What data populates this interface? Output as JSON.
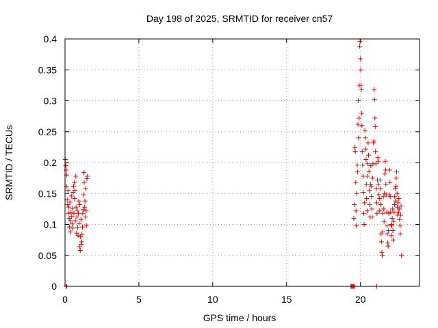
{
  "chart_data": {
    "type": "scatter",
    "title": "Day 198 of 2025, SRMTID for receiver cn57",
    "xlabel": "GPS time / hours",
    "ylabel": "SRMTID / TECUs",
    "xlim": [
      0,
      24
    ],
    "ylim": [
      0,
      0.4
    ],
    "x_ticks": [
      0,
      5,
      10,
      15,
      20
    ],
    "y_ticks": [
      0,
      0.05,
      0.1,
      0.15,
      0.2,
      0.25,
      0.3,
      0.35,
      0.4
    ],
    "x_tick_labels": [
      "0",
      "5",
      "10",
      "15",
      "20"
    ],
    "y_tick_labels": [
      "0",
      "0.05",
      "0.1",
      "0.15",
      "0.2",
      "0.25",
      "0.3",
      "0.35",
      "0.4"
    ],
    "grid": true,
    "legend": "none",
    "marker": "+",
    "marker_color": "#e00000",
    "series": [
      {
        "name": "SRMTID",
        "points": [
          [
            0.02,
            0.205
          ],
          [
            0.05,
            0.195
          ],
          [
            0.08,
            0.188
          ],
          [
            0.1,
            0.162
          ],
          [
            0.12,
            0.18
          ],
          [
            0.15,
            0.14
          ],
          [
            0.18,
            0.132
          ],
          [
            0.2,
            0.155
          ],
          [
            0.22,
            0.118
          ],
          [
            0.25,
            0.128
          ],
          [
            0.28,
            0.11
          ],
          [
            0.3,
            0.096
          ],
          [
            0.33,
            0.136
          ],
          [
            0.35,
            0.088
          ],
          [
            0.38,
            0.106
          ],
          [
            0.4,
            0.12
          ],
          [
            0.43,
            0.146
          ],
          [
            0.45,
            0.113
          ],
          [
            0.48,
            0.101
          ],
          [
            0.5,
            0.126
          ],
          [
            0.53,
            0.094
          ],
          [
            0.55,
            0.152
          ],
          [
            0.58,
            0.162
          ],
          [
            0.6,
            0.118
          ],
          [
            0.63,
            0.168
          ],
          [
            0.65,
            0.142
          ],
          [
            0.68,
            0.155
          ],
          [
            0.7,
            0.106
          ],
          [
            0.73,
            0.178
          ],
          [
            0.75,
            0.128
          ],
          [
            0.78,
            0.086
          ],
          [
            0.8,
            0.112
          ],
          [
            0.83,
            0.123
          ],
          [
            0.85,
            0.095
          ],
          [
            0.88,
            0.082
          ],
          [
            0.9,
            0.118
          ],
          [
            0.93,
            0.138
          ],
          [
            0.95,
            0.102
          ],
          [
            0.98,
            0.064
          ],
          [
            1.0,
            0.132
          ],
          [
            1.03,
            0.058
          ],
          [
            1.05,
            0.08
          ],
          [
            1.08,
            0.108
          ],
          [
            1.1,
            0.068
          ],
          [
            1.13,
            0.072
          ],
          [
            1.15,
            0.084
          ],
          [
            1.18,
            0.096
          ],
          [
            1.2,
            0.118
          ],
          [
            1.23,
            0.124
          ],
          [
            1.25,
            0.148
          ],
          [
            1.28,
            0.184
          ],
          [
            1.3,
            0.168
          ],
          [
            1.33,
            0.128
          ],
          [
            1.35,
            0.138
          ],
          [
            1.38,
            0.112
          ],
          [
            1.4,
            0.158
          ],
          [
            1.43,
            0.122
          ],
          [
            1.45,
            0.098
          ],
          [
            1.48,
            0.174
          ],
          [
            1.5,
            0.178
          ],
          [
            0.07,
            0.0
          ],
          [
            0.12,
            0.0
          ],
          [
            19.35,
            0.0
          ],
          [
            19.4,
            0.0
          ],
          [
            19.45,
            0.0
          ],
          [
            19.5,
            0.0
          ],
          [
            19.55,
            0.0
          ],
          [
            19.6,
            0.0
          ],
          [
            21.1,
            0.0
          ],
          [
            19.55,
            0.11
          ],
          [
            19.6,
            0.132
          ],
          [
            19.62,
            0.225
          ],
          [
            19.65,
            0.218
          ],
          [
            19.68,
            0.168
          ],
          [
            19.7,
            0.122
          ],
          [
            19.72,
            0.098
          ],
          [
            19.75,
            0.15
          ],
          [
            19.78,
            0.196
          ],
          [
            19.8,
            0.185
          ],
          [
            19.83,
            0.262
          ],
          [
            19.85,
            0.3
          ],
          [
            19.88,
            0.24
          ],
          [
            19.9,
            0.272
          ],
          [
            19.92,
            0.325
          ],
          [
            19.95,
            0.388
          ],
          [
            19.97,
            0.396
          ],
          [
            20.0,
            0.368
          ],
          [
            20.02,
            0.35
          ],
          [
            20.04,
            0.325
          ],
          [
            20.06,
            0.318
          ],
          [
            20.08,
            0.28
          ],
          [
            20.1,
            0.26
          ],
          [
            20.12,
            0.218
          ],
          [
            20.15,
            0.196
          ],
          [
            20.18,
            0.178
          ],
          [
            20.2,
            0.152
          ],
          [
            20.22,
            0.118
          ],
          [
            20.25,
            0.1
          ],
          [
            20.28,
            0.135
          ],
          [
            20.3,
            0.252
          ],
          [
            20.33,
            0.24
          ],
          [
            20.35,
            0.222
          ],
          [
            20.38,
            0.205
          ],
          [
            20.4,
            0.165
          ],
          [
            20.42,
            0.142
          ],
          [
            20.45,
            0.122
          ],
          [
            20.48,
            0.178
          ],
          [
            20.5,
            0.198
          ],
          [
            20.52,
            0.232
          ],
          [
            20.55,
            0.212
          ],
          [
            20.58,
            0.186
          ],
          [
            20.6,
            0.155
          ],
          [
            20.62,
            0.132
          ],
          [
            20.65,
            0.112
          ],
          [
            20.68,
            0.165
          ],
          [
            20.7,
            0.195
          ],
          [
            20.72,
            0.162
          ],
          [
            20.75,
            0.145
          ],
          [
            20.78,
            0.125
          ],
          [
            20.8,
            0.112
          ],
          [
            20.82,
            0.175
          ],
          [
            20.85,
            0.198
          ],
          [
            20.88,
            0.232
          ],
          [
            20.9,
            0.235
          ],
          [
            20.92,
            0.318
          ],
          [
            20.95,
            0.302
          ],
          [
            20.98,
            0.272
          ],
          [
            21.0,
            0.258
          ],
          [
            21.02,
            0.218
          ],
          [
            21.05,
            0.198
          ],
          [
            21.08,
            0.158
          ],
          [
            21.1,
            0.135
          ],
          [
            21.12,
            0.118
          ],
          [
            21.15,
            0.172
          ],
          [
            21.18,
            0.208
          ],
          [
            21.2,
            0.202
          ],
          [
            21.22,
            0.165
          ],
          [
            21.25,
            0.148
          ],
          [
            21.28,
            0.122
          ],
          [
            21.3,
            0.142
          ],
          [
            21.33,
            0.172
          ],
          [
            21.35,
            0.158
          ],
          [
            21.38,
            0.132
          ],
          [
            21.4,
            0.085
          ],
          [
            21.42,
            0.072
          ],
          [
            21.45,
            0.055
          ],
          [
            21.48,
            0.05
          ],
          [
            21.5,
            0.088
          ],
          [
            21.52,
            0.118
          ],
          [
            21.55,
            0.145
          ],
          [
            21.58,
            0.125
          ],
          [
            21.6,
            0.105
          ],
          [
            21.62,
            0.15
          ],
          [
            21.65,
            0.182
          ],
          [
            21.68,
            0.202
          ],
          [
            21.7,
            0.188
          ],
          [
            21.72,
            0.165
          ],
          [
            21.75,
            0.148
          ],
          [
            21.78,
            0.12
          ],
          [
            21.8,
            0.098
          ],
          [
            21.82,
            0.085
          ],
          [
            21.85,
            0.07
          ],
          [
            21.88,
            0.065
          ],
          [
            21.9,
            0.09
          ],
          [
            21.92,
            0.118
          ],
          [
            21.95,
            0.148
          ],
          [
            21.98,
            0.188
          ],
          [
            22.0,
            0.168
          ],
          [
            22.02,
            0.145
          ],
          [
            22.05,
            0.12
          ],
          [
            22.08,
            0.1
          ],
          [
            22.1,
            0.082
          ],
          [
            22.12,
            0.098
          ],
          [
            22.15,
            0.11
          ],
          [
            22.18,
            0.125
          ],
          [
            22.2,
            0.09
          ],
          [
            22.22,
            0.075
          ],
          [
            22.25,
            0.105
          ],
          [
            22.28,
            0.12
          ],
          [
            22.3,
            0.132
          ],
          [
            22.32,
            0.145
          ],
          [
            22.35,
            0.158
          ],
          [
            22.38,
            0.138
          ],
          [
            22.4,
            0.162
          ],
          [
            22.42,
            0.175
          ],
          [
            22.45,
            0.185
          ],
          [
            22.48,
            0.15
          ],
          [
            22.5,
            0.128
          ],
          [
            22.52,
            0.115
          ],
          [
            22.55,
            0.135
          ],
          [
            22.58,
            0.12
          ],
          [
            22.6,
            0.142
          ],
          [
            22.62,
            0.125
          ],
          [
            22.65,
            0.108
          ],
          [
            22.68,
            0.098
          ],
          [
            22.7,
            0.085
          ],
          [
            22.72,
            0.115
          ],
          [
            22.75,
            0.13
          ],
          [
            22.78,
            0.05
          ]
        ]
      }
    ]
  }
}
